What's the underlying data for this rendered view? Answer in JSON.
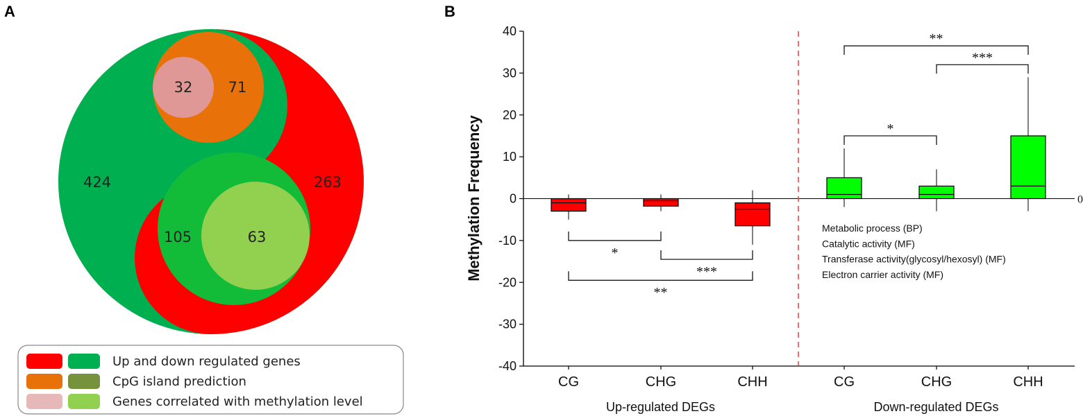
{
  "panel_a": {
    "label": "A",
    "regions": [
      {
        "name": "down-regulated",
        "value": "424",
        "color": "#00b050"
      },
      {
        "name": "up-regulated",
        "value": "263",
        "color": "#ff0000"
      },
      {
        "name": "up-cpg-correlated",
        "value": "32",
        "color": "#df9896"
      },
      {
        "name": "up-cpg-only",
        "value": "71",
        "color": "#e8710a"
      },
      {
        "name": "down-cpg-only",
        "value": "105",
        "color": "#12bc38"
      },
      {
        "name": "down-cpg-correlated",
        "value": "63",
        "color": "#92d050"
      }
    ],
    "legend": [
      {
        "label": "Up and down regulated genes",
        "colors": [
          "#ff0000",
          "#00b050"
        ]
      },
      {
        "label": "CpG island prediction",
        "colors": [
          "#e8710a",
          "#76923c"
        ]
      },
      {
        "label": "Genes correlated with methylation level",
        "colors": [
          "#e6b8b7",
          "#92d050"
        ]
      }
    ]
  },
  "panel_b": {
    "label": "B"
  },
  "chart_data": {
    "type": "box",
    "ylabel": "Methylation Frequency",
    "ylim": [
      -40,
      40
    ],
    "yticks": [
      40,
      30,
      20,
      10,
      0,
      -10,
      -20,
      -30,
      -40
    ],
    "reference_line_label": "0",
    "categories": [
      "CG",
      "CHG",
      "CHH",
      "CG",
      "CHG",
      "CHH"
    ],
    "groups": [
      {
        "label": "Up-regulated DEGs",
        "color": "#ff0000",
        "boxes": [
          0,
          1,
          2
        ]
      },
      {
        "label": "Down-regulated DEGs",
        "color": "#00ff00",
        "boxes": [
          3,
          4,
          5
        ]
      }
    ],
    "boxes": [
      {
        "category": "CG",
        "group": "up",
        "whisker_low": -5,
        "q1": -3,
        "median": -1,
        "q3": 0,
        "whisker_high": 1
      },
      {
        "category": "CHG",
        "group": "up",
        "whisker_low": -3,
        "q1": -1.8,
        "median": -0.5,
        "q3": 0,
        "whisker_high": 1
      },
      {
        "category": "CHH",
        "group": "up",
        "whisker_low": -11,
        "q1": -6.5,
        "median": -2.5,
        "q3": -1,
        "whisker_high": 2
      },
      {
        "category": "CG",
        "group": "down",
        "whisker_low": -2,
        "q1": 0,
        "median": 1,
        "q3": 5,
        "whisker_high": 12
      },
      {
        "category": "CHG",
        "group": "down",
        "whisker_low": -3,
        "q1": 0,
        "median": 1,
        "q3": 3,
        "whisker_high": 7
      },
      {
        "category": "CHH",
        "group": "down",
        "whisker_low": -3,
        "q1": 0,
        "median": 3,
        "q3": 15,
        "whisker_high": 29
      }
    ],
    "significance": [
      {
        "from": 0,
        "to": 1,
        "y": -10,
        "label": "*",
        "direction": "down"
      },
      {
        "from": 1,
        "to": 2,
        "y": -14.5,
        "label": "***",
        "direction": "down"
      },
      {
        "from": 0,
        "to": 2,
        "y": -19.5,
        "label": "**",
        "direction": "down"
      },
      {
        "from": 3,
        "to": 5,
        "y": 36.5,
        "label": "**",
        "direction": "up"
      },
      {
        "from": 4,
        "to": 5,
        "y": 32,
        "label": "***",
        "direction": "up"
      },
      {
        "from": 3,
        "to": 4,
        "y": 15,
        "label": "*",
        "direction": "up"
      }
    ],
    "annotations": [
      "Metabolic process (BP)",
      "Catalytic activity (MF)",
      "Transferase activity(glycosyl/hexosyl) (MF)",
      "Electron carrier activity (MF)"
    ],
    "divider_color": "#e8403e"
  }
}
